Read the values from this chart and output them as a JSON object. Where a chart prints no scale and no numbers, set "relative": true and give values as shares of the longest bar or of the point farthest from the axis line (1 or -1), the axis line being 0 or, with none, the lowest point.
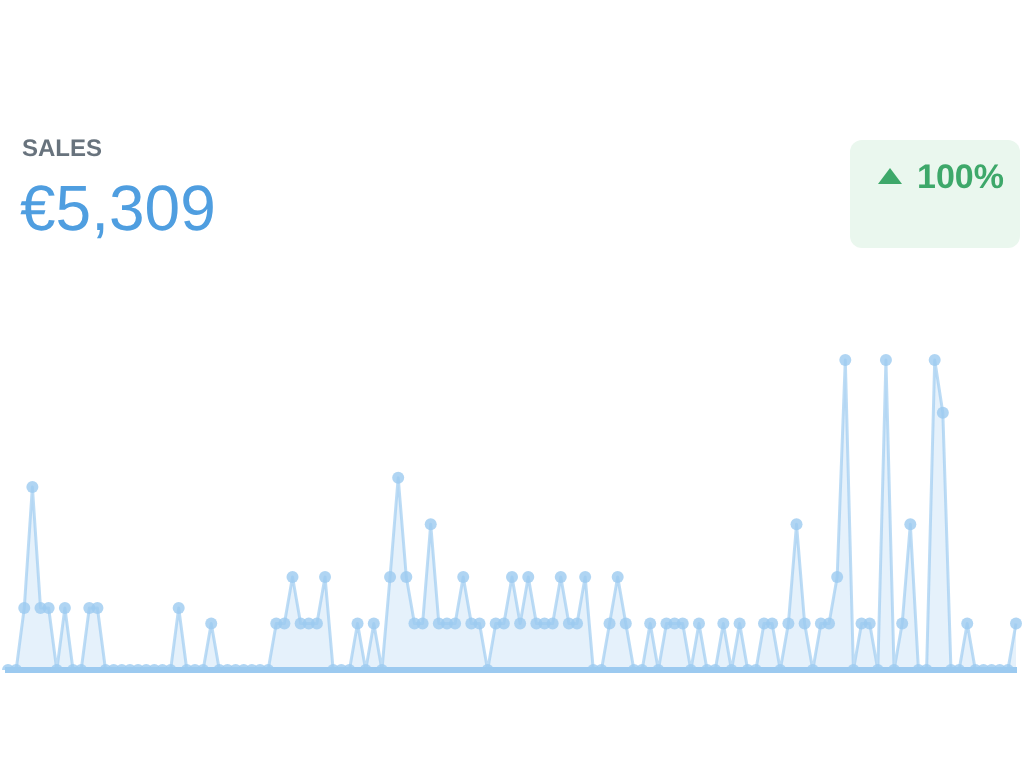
{
  "chart_data": {
    "type": "area",
    "title": "SALES",
    "subtitle": "€5,309",
    "annotations": [
      "100%"
    ],
    "relative": true,
    "marker": "circle",
    "legend": false,
    "categories": [
      null,
      null,
      null,
      null,
      null,
      null,
      null,
      null,
      null,
      null,
      null,
      null,
      null,
      null,
      null,
      null,
      null,
      null,
      null,
      null,
      null,
      null,
      null,
      null,
      null,
      null,
      null,
      null,
      null,
      null,
      null,
      null,
      null,
      null,
      null,
      null,
      null,
      null,
      null,
      null,
      null,
      null,
      null,
      null,
      null,
      null,
      null,
      null,
      null,
      null,
      null,
      null,
      null,
      null,
      null,
      null,
      null,
      null,
      null,
      null,
      null,
      null,
      null,
      null,
      null,
      null,
      null,
      null,
      null,
      null,
      null,
      null,
      null,
      null,
      null,
      null,
      null,
      null,
      null,
      null,
      null,
      null,
      null,
      null,
      null,
      null,
      null,
      null,
      null,
      null,
      null,
      null,
      null,
      null,
      null,
      null,
      null,
      null,
      null,
      null,
      null,
      null,
      null,
      null,
      null,
      null,
      null,
      null,
      null,
      null,
      null,
      null,
      null,
      null,
      null,
      null,
      null,
      null,
      null,
      null,
      null,
      null,
      null,
      null,
      null
    ],
    "series": [
      {
        "color": "#9ccaf0",
        "values": [
          0,
          0,
          0.2,
          0.59,
          0.2,
          0.2,
          0,
          0.2,
          0,
          0,
          0.2,
          0.2,
          0,
          0,
          0,
          0,
          0,
          0,
          0,
          0,
          0,
          0.2,
          0,
          0,
          0,
          0.15,
          0,
          0,
          0,
          0,
          0,
          0,
          0,
          0.15,
          0.15,
          0.3,
          0.15,
          0.15,
          0.15,
          0.3,
          0,
          0,
          0,
          0.15,
          0,
          0.15,
          0,
          0.3,
          0.62,
          0.3,
          0.15,
          0.15,
          0.47,
          0.15,
          0.15,
          0.15,
          0.3,
          0.15,
          0.15,
          0,
          0.15,
          0.15,
          0.3,
          0.15,
          0.3,
          0.15,
          0.15,
          0.15,
          0.3,
          0.15,
          0.15,
          0.3,
          0,
          0,
          0.15,
          0.3,
          0.15,
          0,
          0,
          0.15,
          0,
          0.15,
          0.15,
          0.15,
          0,
          0.15,
          0,
          0,
          0.15,
          0,
          0.15,
          0,
          0,
          0.15,
          0.15,
          0,
          0.15,
          0.47,
          0.15,
          0,
          0.15,
          0.15,
          0.3,
          1,
          0,
          0.15,
          0.15,
          0,
          1,
          0,
          0.15,
          0.47,
          0,
          0,
          1,
          0.83,
          0,
          0,
          0.15,
          0,
          0,
          0,
          0,
          0,
          0.15
        ]
      }
    ]
  }
}
